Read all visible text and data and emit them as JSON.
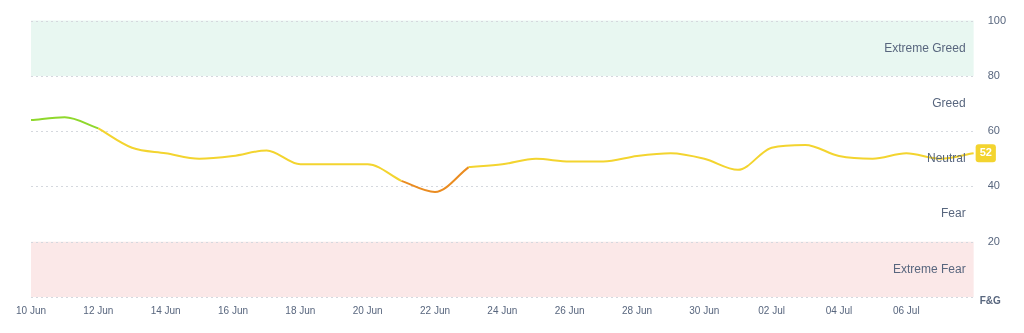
{
  "chart_data": {
    "type": "line",
    "categories": [
      "10 Jun",
      null,
      "12 Jun",
      null,
      "14 Jun",
      null,
      "16 Jun",
      null,
      "18 Jun",
      null,
      "20 Jun",
      null,
      "22 Jun",
      null,
      "24 Jun",
      null,
      "26 Jun",
      null,
      "28 Jun",
      null,
      "30 Jun",
      null,
      "02 Jul",
      null,
      "04 Jul",
      null,
      "06 Jul",
      null,
      null
    ],
    "series": [
      {
        "color": "#8fd82c",
        "values": [
          64,
          65,
          61,
          null,
          null,
          null,
          null,
          null,
          null,
          null,
          null,
          null,
          null,
          null,
          null,
          null,
          null,
          null,
          null,
          null,
          null,
          null,
          null,
          null,
          null,
          null,
          null,
          null,
          null
        ]
      },
      {
        "color": "#f3d42f",
        "values": [
          null,
          null,
          61,
          54,
          52,
          50,
          51,
          53,
          48,
          48,
          48,
          42,
          null,
          47,
          48,
          50,
          49,
          49,
          51,
          52,
          50,
          46,
          54,
          55,
          51,
          50,
          52,
          50,
          52
        ],
        "value_labels": [
          null,
          null,
          null,
          null,
          null,
          null,
          null,
          null,
          null,
          null,
          null,
          null,
          null,
          null,
          null,
          null,
          null,
          null,
          null,
          null,
          null,
          null,
          null,
          null,
          null,
          null,
          null,
          null,
          "52"
        ]
      },
      {
        "color": "#ea8c21",
        "values": [
          null,
          null,
          null,
          null,
          null,
          null,
          null,
          null,
          null,
          null,
          null,
          42,
          38,
          47,
          null,
          null,
          null,
          null,
          null,
          null,
          null,
          null,
          null,
          null,
          null,
          null,
          null,
          null,
          null
        ]
      }
    ],
    "ylabel": "F&G",
    "ylim": [
      0,
      100
    ],
    "yticks": [
      {
        "value": 0,
        "label": null
      },
      20,
      40,
      60,
      80,
      100
    ],
    "grid": "y",
    "legend": false,
    "marker": "none",
    "line_style": "solid",
    "bands": [
      {
        "axis": "y",
        "from": 80,
        "to": 100,
        "label": "Extreme Greed",
        "color": "#e8f7f1"
      },
      {
        "axis": "y",
        "from": 0,
        "to": 20,
        "label": "Extreme Fear",
        "color": "#fbe8e8"
      }
    ],
    "annotations": [
      "Greed",
      "Neutral",
      "Fear"
    ]
  }
}
